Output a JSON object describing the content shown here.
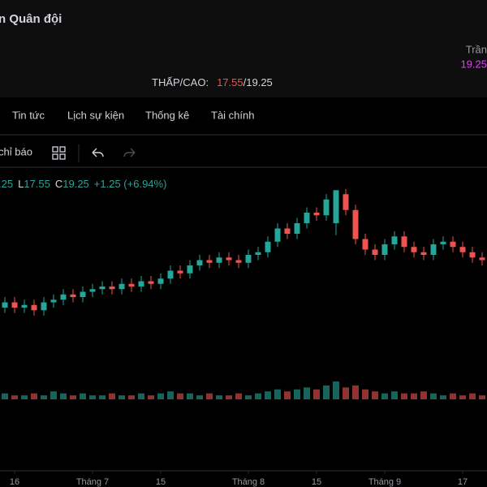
{
  "header": {
    "title": "n Quân đội",
    "ceiling_label": "Trần",
    "ceiling": "19.25",
    "low_high_label": "THẤP/CAO:",
    "low": "17.55",
    "separator": "/",
    "high": "19.25"
  },
  "tabs": [
    "Tin tức",
    "Lịch sự kiện",
    "Thống kê",
    "Tài chính"
  ],
  "toolbar": {
    "indicators": "chỉ báo"
  },
  "ohlc_legend": {
    "open": ".25",
    "low_label": "L",
    "low": "17.55",
    "close_label": "C",
    "close": "19.25",
    "change": "+1.25 (+6.94%)"
  },
  "chart_data": {
    "type": "candlestick",
    "open": [
      14.8,
      15.0,
      14.8,
      14.9,
      14.7,
      15.0,
      15.1,
      15.3,
      15.2,
      15.4,
      15.5,
      15.6,
      15.5,
      15.7,
      15.6,
      15.8,
      15.7,
      15.9,
      16.2,
      16.1,
      16.4,
      16.6,
      16.5,
      16.7,
      16.6,
      16.5,
      16.8,
      16.9,
      17.3,
      17.8,
      17.6,
      18.0,
      18.4,
      18.3,
      18.0,
      19.1,
      18.5,
      17.4,
      17.0,
      16.8,
      17.2,
      17.5,
      17.1,
      16.9,
      16.8,
      17.2,
      17.3,
      17.1,
      16.9,
      16.7
    ],
    "high": [
      15.2,
      15.2,
      15.1,
      15.1,
      15.2,
      15.3,
      15.5,
      15.5,
      15.6,
      15.7,
      15.8,
      15.8,
      15.9,
      15.9,
      16.0,
      16.0,
      16.1,
      16.4,
      16.4,
      16.6,
      16.8,
      16.8,
      16.9,
      16.9,
      16.8,
      17.0,
      17.1,
      17.5,
      18.0,
      18.0,
      18.2,
      18.6,
      18.6,
      19.1,
      19.25,
      19.3,
      18.7,
      17.6,
      17.2,
      17.4,
      17.7,
      17.7,
      17.3,
      17.1,
      17.4,
      17.5,
      17.5,
      17.3,
      17.1,
      16.9
    ],
    "low": [
      14.6,
      14.6,
      14.6,
      14.5,
      14.5,
      14.8,
      14.9,
      15.0,
      15.0,
      15.2,
      15.3,
      15.3,
      15.3,
      15.4,
      15.4,
      15.5,
      15.5,
      15.7,
      15.9,
      15.9,
      16.2,
      16.3,
      16.3,
      16.4,
      16.3,
      16.3,
      16.6,
      16.7,
      17.1,
      17.4,
      17.4,
      17.8,
      18.1,
      18.1,
      17.55,
      18.3,
      17.2,
      16.8,
      16.6,
      16.6,
      17.0,
      16.9,
      16.7,
      16.6,
      16.6,
      17.0,
      16.9,
      16.7,
      16.5,
      16.4
    ],
    "close": [
      15.0,
      14.8,
      14.9,
      14.7,
      15.0,
      15.1,
      15.3,
      15.2,
      15.4,
      15.5,
      15.6,
      15.5,
      15.7,
      15.6,
      15.8,
      15.7,
      15.9,
      16.2,
      16.1,
      16.4,
      16.6,
      16.5,
      16.7,
      16.6,
      16.5,
      16.8,
      16.9,
      17.3,
      17.8,
      17.6,
      18.0,
      18.4,
      18.3,
      18.9,
      19.25,
      18.5,
      17.4,
      17.0,
      16.8,
      17.2,
      17.5,
      17.1,
      16.9,
      16.8,
      17.2,
      17.3,
      17.1,
      16.9,
      16.7,
      16.6
    ],
    "volume": [
      3,
      2,
      2,
      3,
      2,
      4,
      3,
      2,
      3,
      2,
      2,
      3,
      2,
      2,
      3,
      2,
      3,
      4,
      3,
      3,
      2,
      3,
      2,
      2,
      3,
      2,
      3,
      4,
      5,
      4,
      5,
      6,
      5,
      7,
      9,
      6,
      7,
      5,
      4,
      3,
      4,
      3,
      3,
      4,
      3,
      2,
      3,
      2,
      3,
      2
    ],
    "up_color": "#26a69a",
    "down_color": "#ef5350",
    "ylim": [
      12,
      20
    ],
    "xticks": [
      {
        "value": 1,
        "label": "16"
      },
      {
        "value": 9,
        "label": "Tháng 7"
      },
      {
        "value": 16,
        "label": "15"
      },
      {
        "value": 25,
        "label": "Tháng 8"
      },
      {
        "value": 32,
        "label": "15"
      },
      {
        "value": 39,
        "label": "Tháng 9"
      },
      {
        "value": 47,
        "label": "17"
      }
    ]
  }
}
